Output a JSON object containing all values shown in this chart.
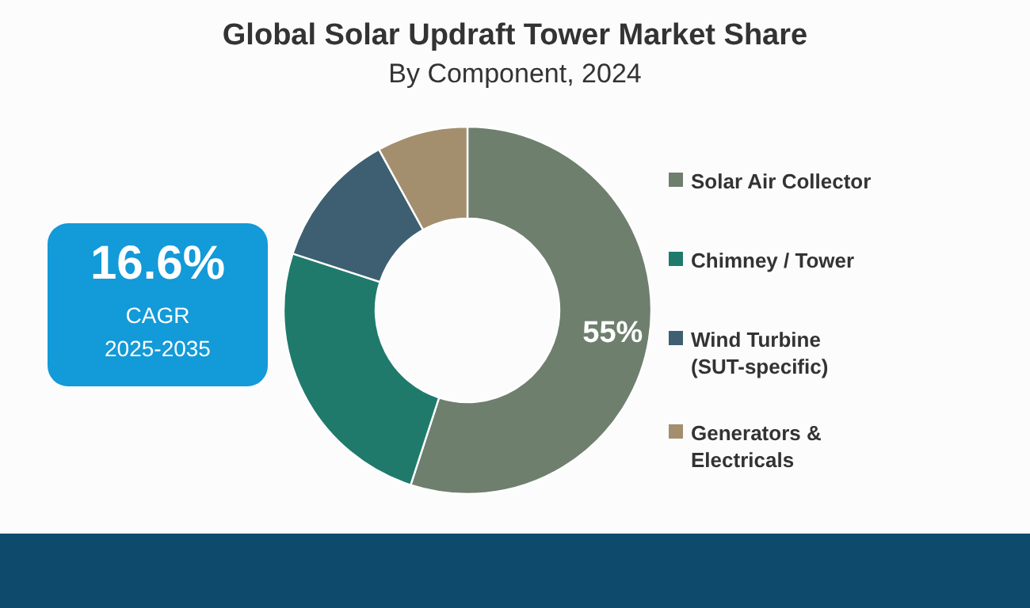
{
  "chart_data": {
    "type": "donut",
    "title": "Global Solar Updraft Tower Market Share",
    "subtitle": "By Component, 2024",
    "categories": [
      "Solar Air Collector",
      "Chimney / Tower",
      "Wind Turbine (SUT-specific)",
      "Generators & Electricals"
    ],
    "values": [
      55,
      25,
      12,
      8
    ],
    "colors": [
      "#6e7f6e",
      "#1f7a6b",
      "#3e5f72",
      "#a38f6e"
    ],
    "value_labels": [
      "55%",
      null,
      null,
      null
    ],
    "annotations": [
      "16.6%",
      "CAGR",
      "2025-2035"
    ],
    "legend": "right"
  }
}
